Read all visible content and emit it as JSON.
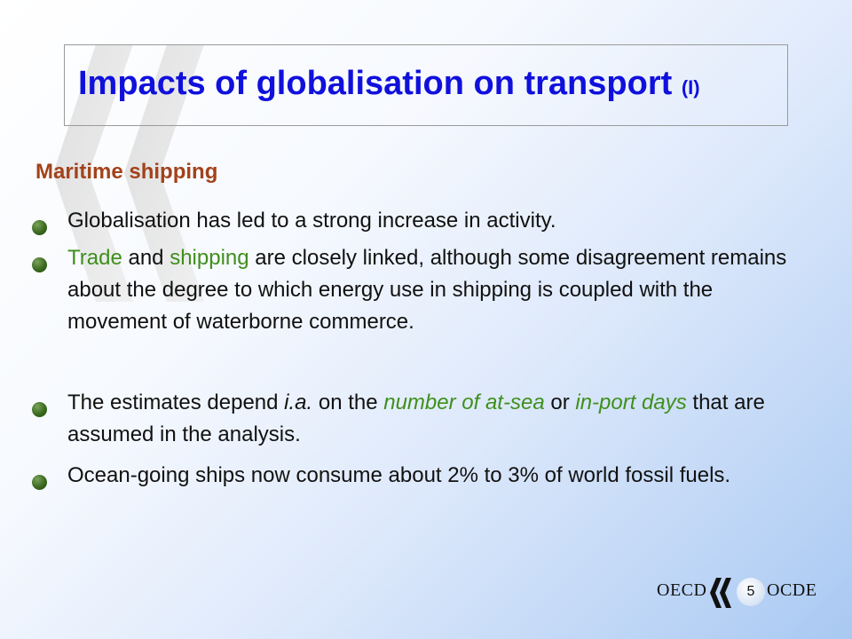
{
  "slide": {
    "title": "Impacts of globalisation on transport",
    "title_suffix": "(I)",
    "section_heading": "Maritime shipping",
    "bullets": [
      {
        "segments": [
          {
            "text": "Globalisation has led to a strong increase in activity."
          }
        ]
      },
      {
        "segments": [
          {
            "text": "Trade",
            "style": "green"
          },
          {
            "text": " and "
          },
          {
            "text": "shipping",
            "style": "green"
          },
          {
            "text": " are closely linked, although some disagreement remains about the degree to which energy use in shipping is coupled with the movement of waterborne commerce."
          }
        ]
      },
      {
        "segments": [
          {
            "text": "The estimates depend "
          },
          {
            "text": "i.a.",
            "style": "italic"
          },
          {
            "text": " on the "
          },
          {
            "text": "number of at-sea",
            "style": "green-italic"
          },
          {
            "text": " or "
          },
          {
            "text": "in-port days",
            "style": "green-italic"
          },
          {
            "text": " that are assumed in the analysis."
          }
        ]
      },
      {
        "segments": [
          {
            "text": "Ocean-going ships now consume about 2% to 3% of world fossil fuels."
          }
        ]
      }
    ]
  },
  "footer": {
    "left_label": "OECD",
    "right_label": "OCDE",
    "page_number": "5"
  },
  "colors": {
    "title": "#1010dd",
    "heading": "#a3421a",
    "highlight": "#3f8f1c",
    "bullet": "#3a6a1f"
  }
}
